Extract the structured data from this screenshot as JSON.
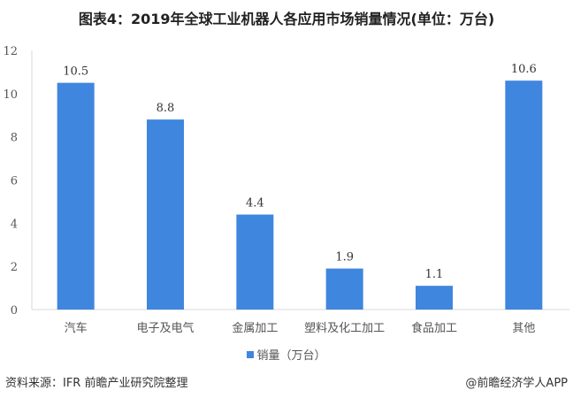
{
  "chart_data": {
    "type": "bar",
    "title": "图表4：2019年全球工业机器人各应用市场销量情况(单位：万台)",
    "categories": [
      "汽车",
      "电子及电气",
      "金属加工",
      "塑料及化工加工",
      "食品加工",
      "其他"
    ],
    "series": [
      {
        "name": "销量（万台）",
        "values": [
          10.5,
          8.8,
          4.4,
          1.9,
          1.1,
          10.6
        ],
        "color": "#3f86de"
      }
    ],
    "data_labels": [
      "10.5",
      "8.8",
      "4.4",
      "1.9",
      "1.1",
      "10.6"
    ],
    "xlabel": "",
    "ylabel": "",
    "ylim": [
      0,
      12
    ],
    "yticks": [
      "0",
      "2",
      "4",
      "6",
      "8",
      "10",
      "12"
    ],
    "grid": false,
    "legend": "bottom"
  },
  "footer": {
    "source": "资料来源：IFR 前瞻产业研究院整理",
    "credit": "@前瞻经济学人APP"
  }
}
